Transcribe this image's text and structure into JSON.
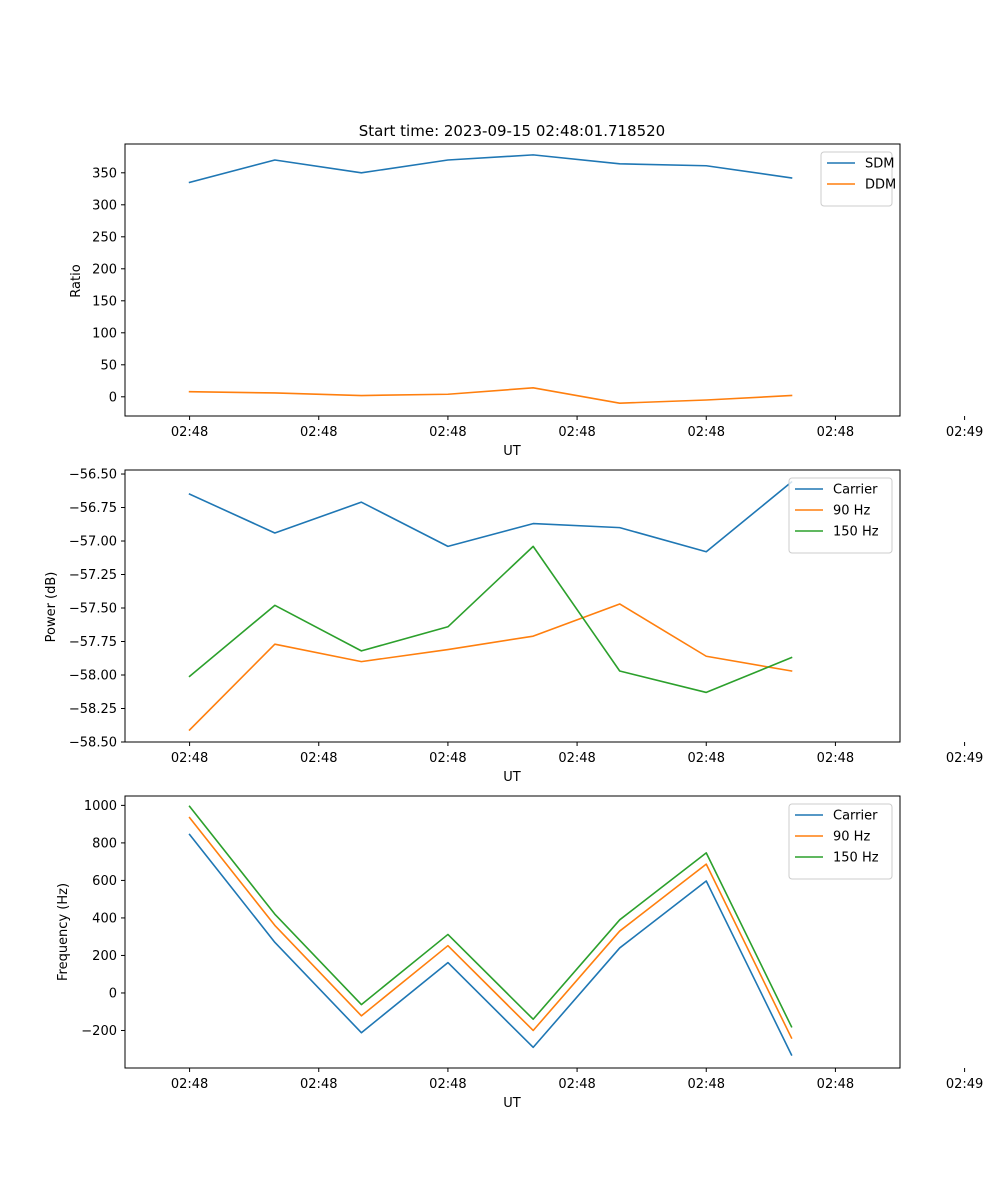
{
  "chart_data": [
    {
      "type": "line",
      "title": "Start time: 2023-09-15 02:48:01.718520",
      "xlabel": "UT",
      "ylabel": "Ratio",
      "xlim": [
        -0.5,
        5.5
      ],
      "ylim": [
        -30,
        395
      ],
      "x": [
        0,
        0.66,
        1.33,
        2,
        2.66,
        3.33,
        4,
        4.66
      ],
      "xticks": [
        {
          "v": 0,
          "label": "02:48"
        },
        {
          "v": 1,
          "label": "02:48"
        },
        {
          "v": 2,
          "label": "02:48"
        },
        {
          "v": 3,
          "label": "02:48"
        },
        {
          "v": 4,
          "label": "02:48"
        },
        {
          "v": 5,
          "label": "02:48"
        },
        {
          "v": 6,
          "label": "02:49"
        }
      ],
      "yticks": [
        0,
        50,
        100,
        150,
        200,
        250,
        300,
        350
      ],
      "legend_position": "upper right",
      "series": [
        {
          "name": "SDM",
          "color": "#1f77b4",
          "values": [
            335,
            370,
            350,
            370,
            378,
            364,
            361,
            342
          ]
        },
        {
          "name": "DDM",
          "color": "#ff7f0e",
          "values": [
            8,
            6,
            2,
            4,
            14,
            -10,
            -5,
            2
          ]
        }
      ]
    },
    {
      "type": "line",
      "title": "",
      "xlabel": "UT",
      "ylabel": "Power (dB)",
      "xlim": [
        -0.5,
        5.5
      ],
      "ylim": [
        -58.5,
        -56.47
      ],
      "x": [
        0,
        0.66,
        1.33,
        2,
        2.66,
        3.33,
        4,
        4.66
      ],
      "xticks": [
        {
          "v": 0,
          "label": "02:48"
        },
        {
          "v": 1,
          "label": "02:48"
        },
        {
          "v": 2,
          "label": "02:48"
        },
        {
          "v": 3,
          "label": "02:48"
        },
        {
          "v": 4,
          "label": "02:48"
        },
        {
          "v": 5,
          "label": "02:48"
        },
        {
          "v": 6,
          "label": "02:49"
        }
      ],
      "yticks": [
        {
          "v": -58.5,
          "label": "−58.50"
        },
        {
          "v": -58.25,
          "label": "−58.25"
        },
        {
          "v": -58.0,
          "label": "−58.00"
        },
        {
          "v": -57.75,
          "label": "−57.75"
        },
        {
          "v": -57.5,
          "label": "−57.50"
        },
        {
          "v": -57.25,
          "label": "−57.25"
        },
        {
          "v": -57.0,
          "label": "−57.00"
        },
        {
          "v": -56.75,
          "label": "−56.75"
        },
        {
          "v": -56.5,
          "label": "−56.50"
        }
      ],
      "legend_position": "upper right",
      "series": [
        {
          "name": "Carrier",
          "color": "#1f77b4",
          "values": [
            -56.65,
            -56.94,
            -56.71,
            -57.04,
            -56.87,
            -56.9,
            -57.08,
            -56.56
          ]
        },
        {
          "name": "90 Hz",
          "color": "#ff7f0e",
          "values": [
            -58.41,
            -57.77,
            -57.9,
            -57.81,
            -57.71,
            -57.47,
            -57.86,
            -57.97
          ]
        },
        {
          "name": "150 Hz",
          "color": "#2ca02c",
          "values": [
            -58.01,
            -57.48,
            -57.82,
            -57.64,
            -57.04,
            -57.97,
            -58.13,
            -57.87
          ]
        }
      ]
    },
    {
      "type": "line",
      "title": "",
      "xlabel": "UT",
      "ylabel": "Frequency (Hz)",
      "xlim": [
        -0.5,
        5.5
      ],
      "ylim": [
        -400,
        1050
      ],
      "x": [
        0,
        0.66,
        1.33,
        2,
        2.66,
        3.33,
        4,
        4.66
      ],
      "xticks": [
        {
          "v": 0,
          "label": "02:48"
        },
        {
          "v": 1,
          "label": "02:48"
        },
        {
          "v": 2,
          "label": "02:48"
        },
        {
          "v": 3,
          "label": "02:48"
        },
        {
          "v": 4,
          "label": "02:48"
        },
        {
          "v": 5,
          "label": "02:48"
        },
        {
          "v": 6,
          "label": "02:49"
        }
      ],
      "yticks": [
        {
          "v": -200,
          "label": "−200"
        },
        {
          "v": 0,
          "label": "0"
        },
        {
          "v": 200,
          "label": "200"
        },
        {
          "v": 400,
          "label": "400"
        },
        {
          "v": 600,
          "label": "600"
        },
        {
          "v": 800,
          "label": "800"
        },
        {
          "v": 1000,
          "label": "1000"
        }
      ],
      "legend_position": "upper right",
      "series": [
        {
          "name": "Carrier",
          "color": "#1f77b4",
          "values": [
            845,
            270,
            -212,
            162,
            -290,
            240,
            597,
            -330
          ]
        },
        {
          "name": "90 Hz",
          "color": "#ff7f0e",
          "values": [
            935,
            360,
            -122,
            252,
            -200,
            330,
            687,
            -240
          ]
        },
        {
          "name": "150 Hz",
          "color": "#2ca02c",
          "values": [
            995,
            420,
            -62,
            312,
            -140,
            390,
            747,
            -180
          ]
        }
      ]
    }
  ]
}
